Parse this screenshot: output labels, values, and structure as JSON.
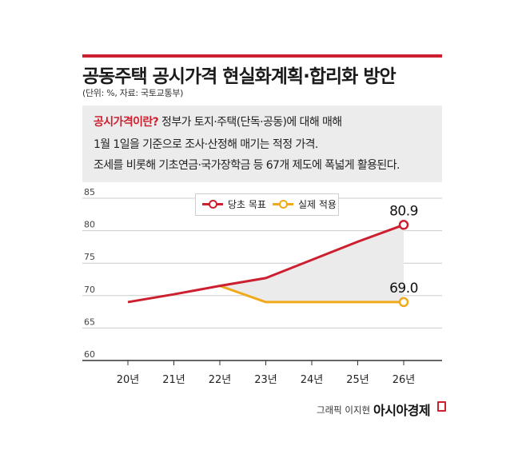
{
  "title": "공동주택 공시가격 현실화계획·합리화 방안",
  "source": "(단위: %, 자료: 국토교통부)",
  "definition": {
    "term": "공시가격이란?",
    "line1": " 정부가 토지·주택(단독·공동)에 대해 매해",
    "line2": "1월 1일을 기준으로 조사·산정해 매기는 적정 가격.",
    "line3": "조세를 비롯해 기초연금·국가장학금 등 67개 제도에 폭넓게 활용된다."
  },
  "colors": {
    "accent": "#cc1f2f",
    "series1": "#cc1f2f",
    "series2": "#f0a91a",
    "fill": "#ebebeb",
    "grid": "#cccccc"
  },
  "chart_data": {
    "type": "line",
    "categories": [
      "20년",
      "21년",
      "22년",
      "23년",
      "24년",
      "25년",
      "26년"
    ],
    "yticks": [
      60,
      65,
      70,
      75,
      80,
      85
    ],
    "ylim": [
      60,
      85
    ],
    "grid": true,
    "legend_position": "top-center",
    "series": [
      {
        "name": "당초 목표",
        "color": "#cc1f2f",
        "values": [
          69.0,
          70.2,
          71.5,
          72.7,
          75.5,
          78.3,
          80.9
        ]
      },
      {
        "name": "실제 적용",
        "color": "#f0a91a",
        "values": [
          null,
          null,
          71.5,
          69.0,
          69.0,
          69.0,
          69.0
        ]
      }
    ],
    "annotations": [
      {
        "label": "80.9",
        "category": "26년",
        "series": "당초 목표"
      },
      {
        "label": "69.0",
        "category": "26년",
        "series": "실제 적용"
      }
    ]
  },
  "credit": "그래픽 이지현",
  "brand": "아시아경제"
}
